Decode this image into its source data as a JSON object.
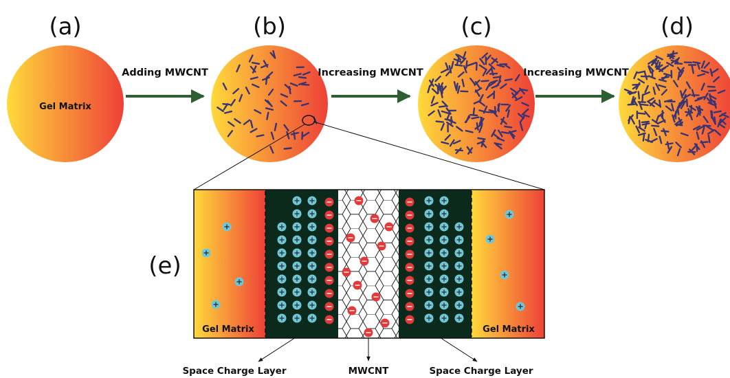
{
  "panels": {
    "a": {
      "label": "(a)",
      "text": "Gel Matrix"
    },
    "b": {
      "label": "(b)"
    },
    "c": {
      "label": "(c)"
    },
    "d": {
      "label": "(d)"
    },
    "e": {
      "label": "(e)"
    }
  },
  "arrows": {
    "a_to_b": "Adding MWCNT",
    "b_to_c": "Increasing MWCNT",
    "c_to_d": "Increasing MWCNT"
  },
  "detail": {
    "left_gel": "Gel Matrix",
    "right_gel": "Gel Matrix",
    "labels": {
      "space_left": "Space Charge Layer",
      "mwcnt": "MWCNT",
      "space_right": "Space Charge Layer"
    }
  },
  "colors": {
    "gradient_start": "#FFD93B",
    "gradient_end": "#EE4137",
    "tube": "#3B3470",
    "arrow": "#2E5F32",
    "layer_bg": "#0C2A1B",
    "cation": "#6FC6D6",
    "anion": "#E03A3A"
  },
  "symbols": {
    "cation_sign": "+",
    "anion_sign": "–"
  }
}
